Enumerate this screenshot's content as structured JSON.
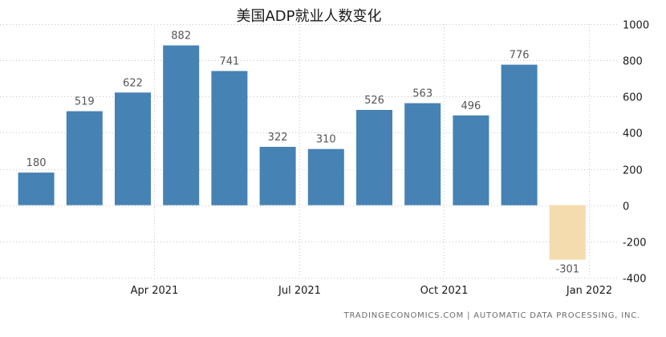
{
  "chart_data": {
    "type": "bar",
    "title": "美国ADP就业人数变化",
    "categories": [
      "2021-01",
      "2021-02",
      "2021-03",
      "2021-04",
      "2021-05",
      "2021-06",
      "2021-07",
      "2021-08",
      "2021-09",
      "2021-10",
      "2021-11",
      "2021-12"
    ],
    "values": [
      180,
      519,
      622,
      882,
      741,
      322,
      310,
      526,
      563,
      496,
      776,
      -301
    ],
    "data_labels": [
      "180",
      "519",
      "622",
      "882",
      "741",
      "322",
      "310",
      "526",
      "563",
      "496",
      "776",
      "-301"
    ],
    "x_tick_labels": [
      "Apr 2021",
      "Jul 2021",
      "Oct 2021",
      "Jan 2022"
    ],
    "y_ticks": [
      1000,
      800,
      600,
      400,
      200,
      0,
      -200,
      -400
    ],
    "ylim": [
      -400,
      1000
    ],
    "ylabel": "",
    "xlabel": "",
    "y_axis_position": "right",
    "grid": true,
    "colors": {
      "positive": "#4682b4",
      "negative": "#f4dcae",
      "grid": "#c8c8c8",
      "text": "#555555",
      "axis_text": "#1a1a1a"
    }
  },
  "source_credit": "TRADINGECONOMICS.COM  |  AUTOMATIC DATA PROCESSING, INC."
}
